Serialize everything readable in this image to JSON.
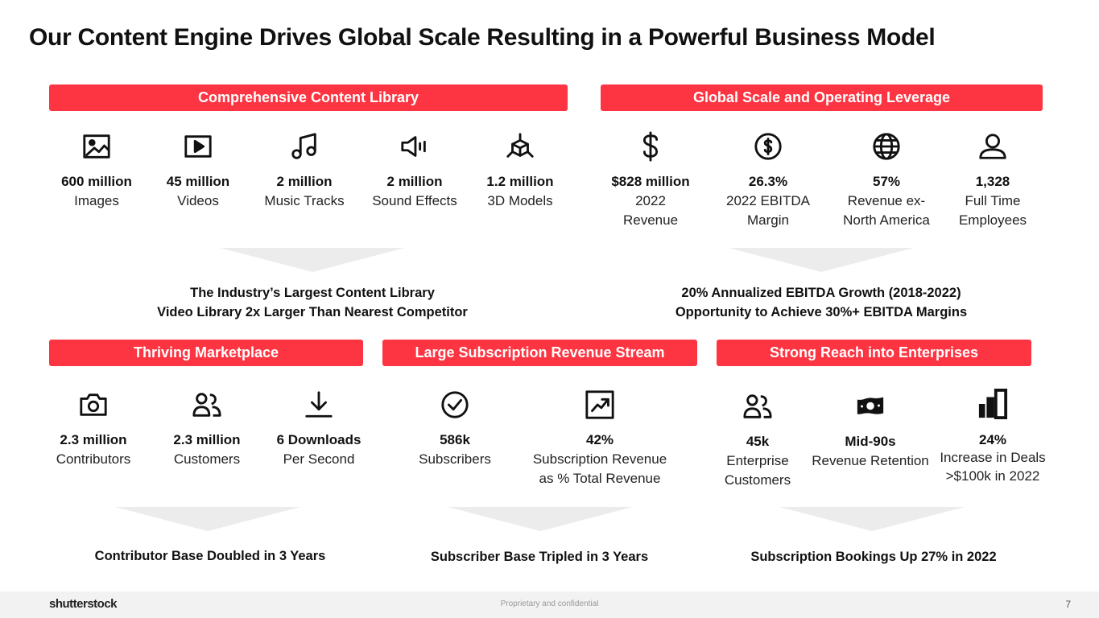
{
  "title": "Our Content Engine Drives Global Scale Resulting in a Powerful Business Model",
  "colors": {
    "accent": "#fd3441",
    "chevron": "#ececec",
    "footer_bg": "#f2f2f2"
  },
  "library": {
    "heading": "Comprehensive Content Library",
    "stats": [
      {
        "icon": "image-icon",
        "value": "600 million",
        "label": "Images"
      },
      {
        "icon": "video-play-icon",
        "value": "45 million",
        "label": "Videos"
      },
      {
        "icon": "music-note-icon",
        "value": "2 million",
        "label": "Music Tracks"
      },
      {
        "icon": "speaker-icon",
        "value": "2 million",
        "label": "Sound Effects"
      },
      {
        "icon": "3d-cube-icon",
        "value": "1.2 million",
        "label": "3D Models"
      }
    ],
    "summary": [
      "The Industry’s Largest Content Library",
      "Video Library 2x Larger Than Nearest Competitor"
    ]
  },
  "scale": {
    "heading": "Global Scale and Operating Leverage",
    "stats": [
      {
        "icon": "dollar-sign-icon",
        "value": "$828 million",
        "label": [
          "2022",
          "Revenue"
        ]
      },
      {
        "icon": "dollar-circle-icon",
        "value": "26.3%",
        "label": [
          "2022 EBITDA",
          "Margin"
        ]
      },
      {
        "icon": "globe-icon",
        "value": "57%",
        "label": [
          "Revenue ex-",
          "North America"
        ]
      },
      {
        "icon": "person-icon",
        "value": "1,328",
        "label": [
          "Full Time",
          "Employees"
        ]
      }
    ],
    "summary": [
      "20% Annualized EBITDA Growth (2018-2022)",
      "Opportunity to Achieve 30%+ EBITDA Margins"
    ]
  },
  "marketplace": {
    "heading": "Thriving Marketplace",
    "stats": [
      {
        "icon": "camera-icon",
        "value": "2.3 million",
        "label": "Contributors"
      },
      {
        "icon": "people-icon",
        "value": "2.3 million",
        "label": "Customers"
      },
      {
        "icon": "download-icon",
        "value": "6 Downloads",
        "label": "Per Second"
      }
    ],
    "summary": "Contributor Base Doubled in 3 Years"
  },
  "subscription": {
    "heading": "Large Subscription Revenue Stream",
    "stats": [
      {
        "icon": "check-circle-icon",
        "value": "586k",
        "label": "Subscribers"
      },
      {
        "icon": "trending-up-icon",
        "value": "42%",
        "label": [
          "Subscription Revenue",
          "as % Total Revenue"
        ]
      }
    ],
    "summary": "Subscriber Base Tripled in 3 Years"
  },
  "enterprise": {
    "heading": "Strong Reach into Enterprises",
    "stats": [
      {
        "icon": "people-icon",
        "value": "45k",
        "label": [
          "Enterprise",
          "Customers"
        ]
      },
      {
        "icon": "money-bill-icon",
        "value": "Mid-90s",
        "label": "Revenue Retention"
      },
      {
        "icon": "bar-chart-icon",
        "value": "24%",
        "label": [
          "Increase in Deals",
          ">$100k in 2022"
        ]
      }
    ],
    "summary": "Subscription Bookings Up 27% in 2022"
  },
  "footer": {
    "logo": "shutterstock",
    "confidential": "Proprietary and confidential",
    "page": "7"
  }
}
